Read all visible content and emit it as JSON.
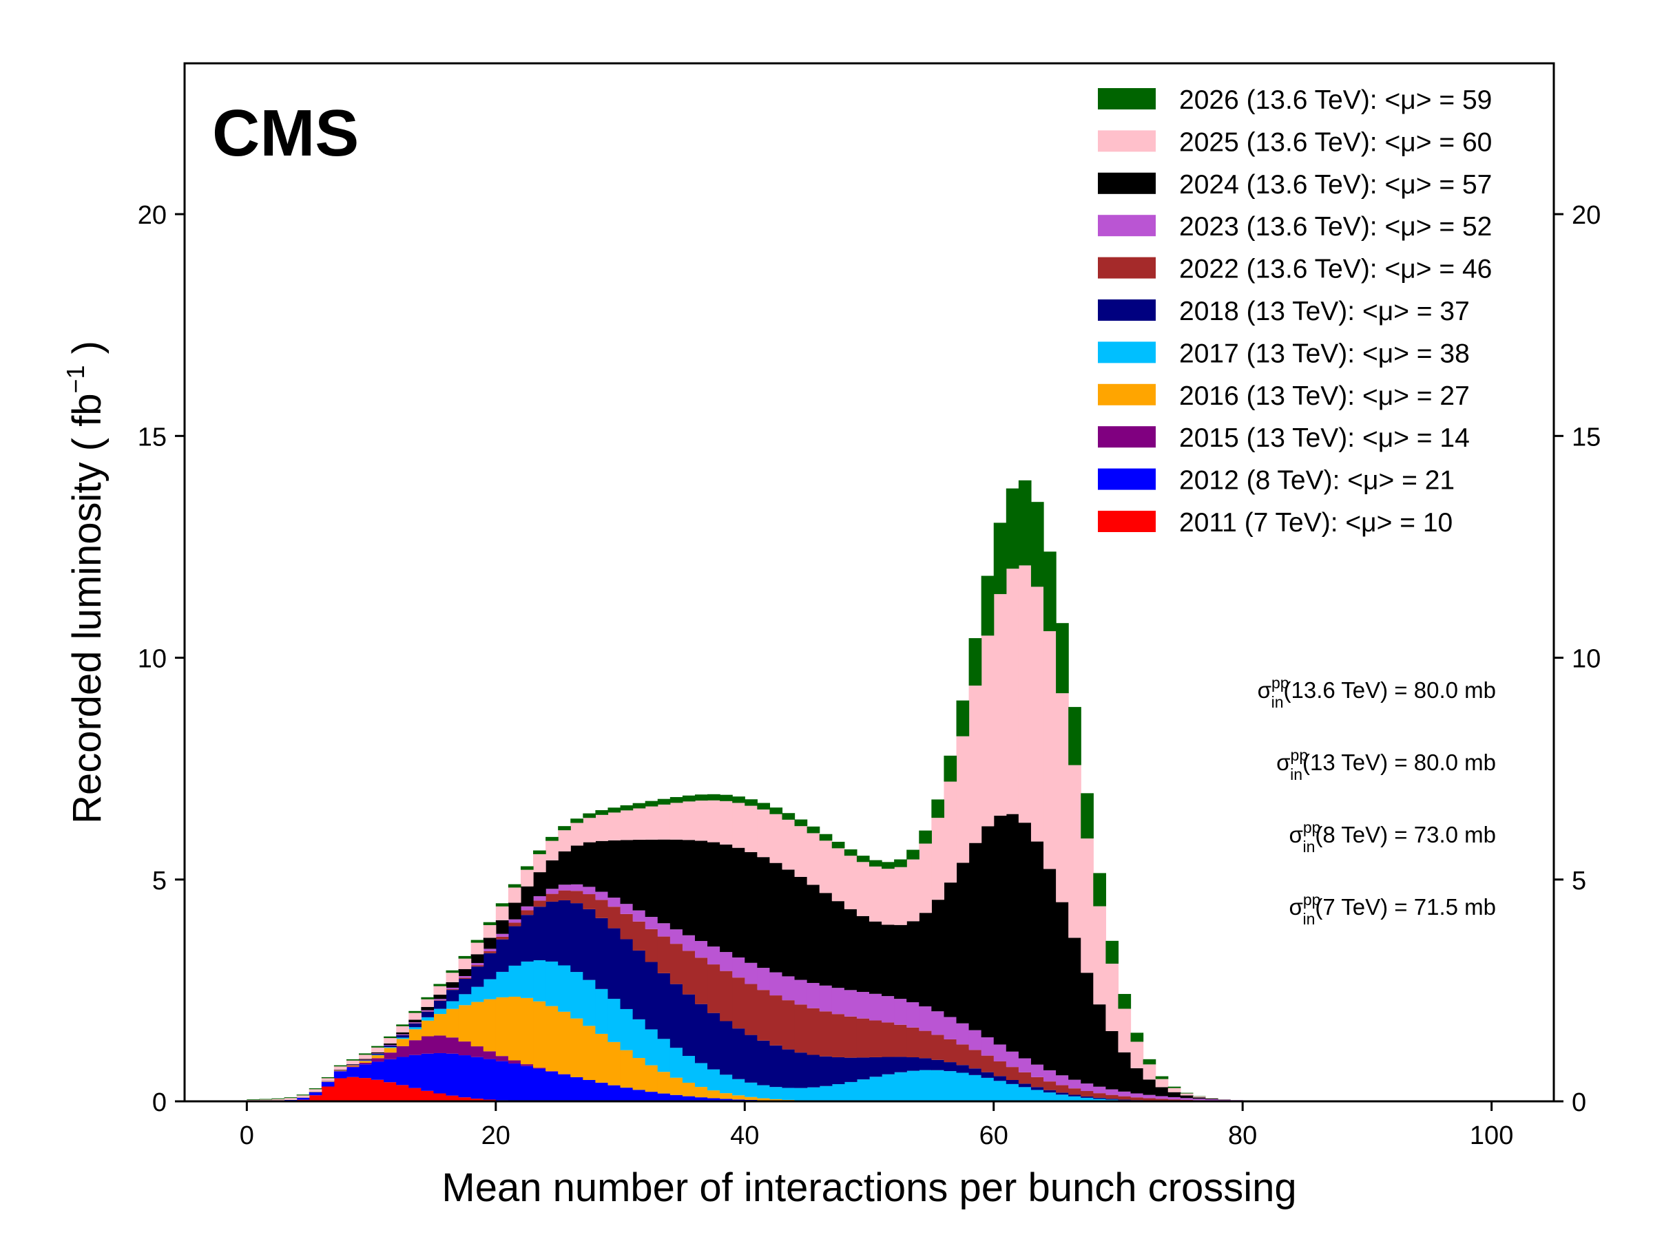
{
  "chart_data": {
    "type": "bar",
    "stacked": true,
    "binning": "histogram, 1 unit per bin",
    "experiment_label": "CMS",
    "xlabel": "Mean number of interactions per bunch crossing",
    "ylabel": "Recorded luminosity ( fb",
    "ylabel_sup": "−1",
    "ylabel_end": " )",
    "xlim": [
      -5,
      105
    ],
    "ylim": [
      0,
      23.4
    ],
    "x_ticks": [
      0,
      20,
      40,
      60,
      80,
      100
    ],
    "y_ticks": [
      0,
      5,
      10,
      15,
      20
    ],
    "legend_position": "top-right",
    "grid": false,
    "series": [
      {
        "name": "2011 (7 TeV): <μ> = 10",
        "color": "#ff0000",
        "shape": "skew",
        "peak": 8,
        "height": 0.55,
        "sigma_left": 1.5,
        "sigma_right": 5
      },
      {
        "name": "2012 (8 TeV): <μ> = 21",
        "color": "#0000ff",
        "shape": "skew",
        "peak": 17,
        "height": 0.95,
        "sigma_left": 5,
        "sigma_right": 9
      },
      {
        "name": "2015 (13 TeV): <μ> = 14",
        "color": "#800080",
        "shape": "skew",
        "peak": 15,
        "height": 0.4,
        "sigma_left": 2.5,
        "sigma_right": 3.5
      },
      {
        "name": "2016 (13 TeV): <μ> = 27",
        "color": "#ffa500",
        "shape": "skew",
        "peak": 23,
        "height": 1.5,
        "sigma_left": 5,
        "sigma_right": 7
      },
      {
        "name": "2017 (13 TeV): <μ> = 38",
        "color": "#00bfff",
        "shape": "bimodal",
        "peak": 26,
        "height": 1.05,
        "sigma_left": 5,
        "sigma_right": 9,
        "peak2": 55,
        "height2": 0.7,
        "sigma2": 6
      },
      {
        "name": "2018 (13 TeV): <μ> = 37",
        "color": "#000080",
        "shape": "skew",
        "peak": 28,
        "height": 1.6,
        "sigma_left": 6,
        "sigma_right": 14
      },
      {
        "name": "2022 (13.6 TeV): <μ> = 46",
        "color": "#a52a2a",
        "shape": "skew",
        "peak": 40,
        "height": 1.15,
        "sigma_left": 8,
        "sigma_right": 13
      },
      {
        "name": "2023 (13.6 TeV): <μ> = 52",
        "color": "#ba55d3",
        "shape": "skew",
        "peak": 50,
        "height": 0.6,
        "sigma_left": 14,
        "sigma_right": 11
      },
      {
        "name": "2024 (13.6 TeV): <μ> = 57",
        "color": "#000000",
        "shape": "bimodal",
        "peak": 41,
        "height": 2.5,
        "sigma_left": 10,
        "sigma_right": 9,
        "peak2": 62,
        "height2": 5.2,
        "sigma2": 4.5
      },
      {
        "name": "2025 (13.6 TeV): <μ> = 60",
        "color": "#ffc0cb",
        "shape": "bimodal",
        "peak": 50,
        "height": 1.2,
        "sigma_left": 18,
        "sigma_right": 7,
        "peak2": 63,
        "height2": 5.6,
        "sigma2": 4.0
      },
      {
        "name": "2026 (13.6 TeV): <μ> = 59",
        "color": "#006400",
        "shape": "bimodal",
        "peak": 45,
        "height": 0.15,
        "sigma_left": 20,
        "sigma_right": 10,
        "peak2": 63,
        "height2": 1.9,
        "sigma2": 4.0,
        "extra_bins": {
          "4": 0.2,
          "5": 0.55,
          "6": 0.85,
          "7": 0.2
        }
      }
    ],
    "annotations": [
      {
        "sigma": "σ",
        "sup": "pp",
        "sub": "in",
        "text": "(13.6 TeV) = 80.0 mb"
      },
      {
        "sigma": "σ",
        "sup": "pp",
        "sub": "in",
        "text": "(13 TeV) = 80.0 mb"
      },
      {
        "sigma": "σ",
        "sup": "pp",
        "sub": "in",
        "text": "(8 TeV) = 73.0 mb"
      },
      {
        "sigma": "σ",
        "sup": "pp",
        "sub": "in",
        "text": "(7 TeV) = 71.5 mb"
      }
    ]
  }
}
